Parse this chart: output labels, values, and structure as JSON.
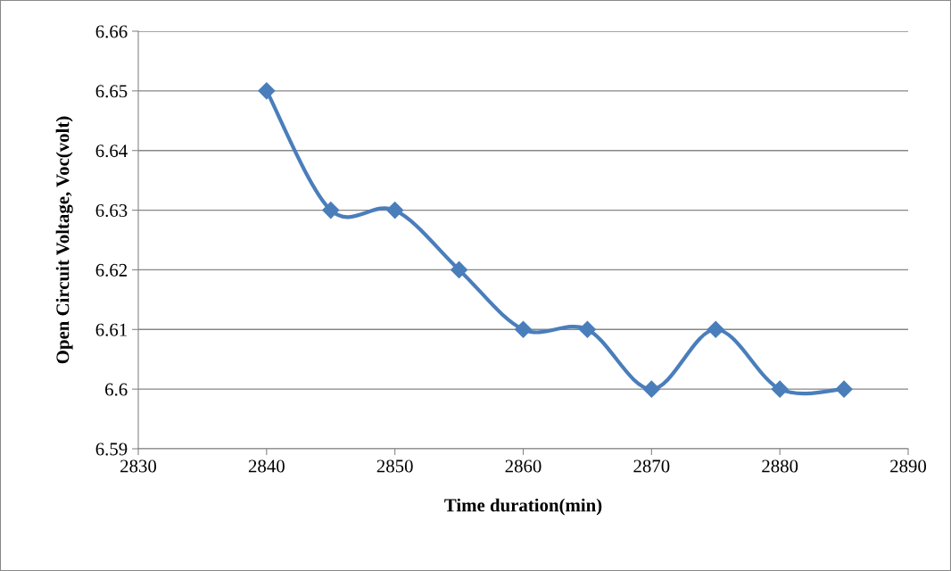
{
  "chart_data": {
    "type": "line",
    "xlabel": "Time duration(min)",
    "ylabel": "Open Circuit Voltage, Voc(volt)",
    "x": [
      2840,
      2845,
      2850,
      2855,
      2860,
      2865,
      2870,
      2875,
      2880,
      2885
    ],
    "series": [
      {
        "color": "#4a7ebb",
        "values": [
          6.65,
          6.63,
          6.63,
          6.62,
          6.61,
          6.61,
          6.6,
          6.61,
          6.6,
          6.6
        ]
      }
    ],
    "xlim": [
      2830,
      2890
    ],
    "xticks": [
      2830,
      2840,
      2850,
      2860,
      2870,
      2880,
      2890
    ],
    "ylim": [
      6.59,
      6.66
    ],
    "yticks": [
      6.59,
      6.6,
      6.61,
      6.62,
      6.63,
      6.64,
      6.65,
      6.66
    ],
    "grid": "y",
    "marker": "diamond",
    "line_style": "solid",
    "legend": false
  }
}
